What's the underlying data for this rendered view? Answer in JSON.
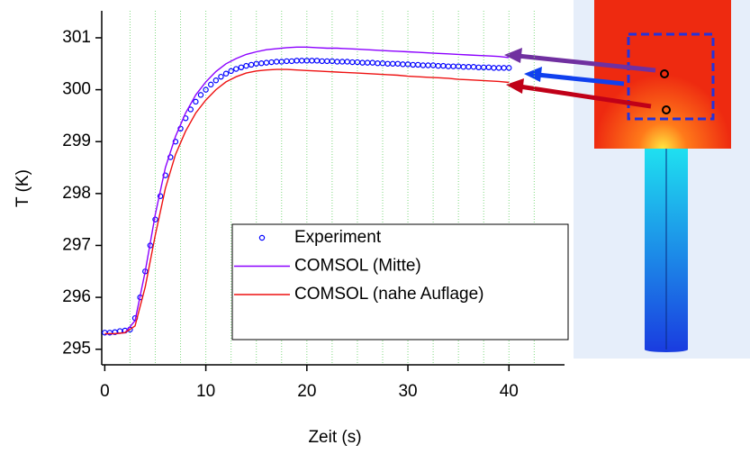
{
  "chart_data": {
    "type": "line",
    "x_label": "Zeit (s)",
    "y_label": "T (K)",
    "xlim": [
      -0.3,
      45.5
    ],
    "ylim": [
      294.7,
      301.52
    ],
    "xticks": [
      0,
      10,
      20,
      30,
      40
    ],
    "yticks": [
      295,
      296,
      297,
      298,
      299,
      300,
      301
    ],
    "vertical_gridlines": [
      2.5,
      5,
      7.5,
      10,
      12.5,
      15,
      17.5,
      20,
      22.5,
      25,
      27.5,
      30,
      32.5,
      35,
      37.5,
      40,
      42.5
    ],
    "grid_color": "#7fd97f",
    "legend": "lower right",
    "series": [
      {
        "name": "Experiment",
        "color": "#0000ff",
        "marker": "circle",
        "x": [
          0,
          0.5,
          1,
          1.5,
          2,
          2.5,
          3,
          3.5,
          4,
          4.5,
          5,
          5.5,
          6,
          6.5,
          7,
          7.5,
          8,
          8.5,
          9,
          9.5,
          10,
          10.5,
          11,
          11.5,
          12,
          12.5,
          13,
          13.5,
          14,
          14.5,
          15,
          15.5,
          16,
          16.5,
          17,
          17.5,
          18,
          18.5,
          19,
          19.5,
          20,
          20.5,
          21,
          21.5,
          22,
          22.5,
          23,
          23.5,
          24,
          24.5,
          25,
          25.5,
          26,
          26.5,
          27,
          27.5,
          28,
          28.5,
          29,
          29.5,
          30,
          30.5,
          31,
          31.5,
          32,
          32.5,
          33,
          33.5,
          34,
          34.5,
          35,
          35.5,
          36,
          36.5,
          37,
          37.5,
          38,
          38.5,
          39,
          39.5,
          40
        ],
        "values": [
          295.32,
          295.32,
          295.33,
          295.35,
          295.36,
          295.38,
          295.6,
          296.0,
          296.5,
          297.0,
          297.5,
          297.95,
          298.35,
          298.7,
          299.0,
          299.25,
          299.45,
          299.62,
          299.77,
          299.9,
          300.0,
          300.1,
          300.18,
          300.25,
          300.31,
          300.36,
          300.4,
          300.43,
          300.46,
          300.48,
          300.5,
          300.51,
          300.52,
          300.53,
          300.54,
          300.54,
          300.55,
          300.55,
          300.56,
          300.56,
          300.56,
          300.56,
          300.56,
          300.55,
          300.55,
          300.55,
          300.54,
          300.54,
          300.54,
          300.53,
          300.53,
          300.52,
          300.52,
          300.52,
          300.51,
          300.51,
          300.5,
          300.5,
          300.5,
          300.49,
          300.49,
          300.48,
          300.48,
          300.47,
          300.47,
          300.47,
          300.46,
          300.46,
          300.45,
          300.45,
          300.45,
          300.44,
          300.44,
          300.44,
          300.43,
          300.43,
          300.43,
          300.42,
          300.42,
          300.42,
          300.42
        ]
      },
      {
        "name": "COMSOL (Mitte)",
        "color": "#8b00ff",
        "marker": "line",
        "x": [
          0,
          1,
          2,
          3,
          4,
          5,
          6,
          7,
          8,
          9,
          10,
          11,
          12,
          13,
          14,
          15,
          16,
          17,
          18,
          19,
          20,
          21,
          22,
          23,
          24,
          25,
          26,
          27,
          28,
          29,
          30,
          31,
          32,
          33,
          34,
          35,
          36,
          37,
          38,
          39,
          40
        ],
        "values": [
          295.3,
          295.3,
          295.32,
          295.55,
          296.5,
          297.6,
          298.5,
          299.1,
          299.55,
          299.9,
          300.15,
          300.35,
          300.5,
          300.6,
          300.68,
          300.73,
          300.77,
          300.79,
          300.81,
          300.82,
          300.82,
          300.81,
          300.8,
          300.8,
          300.79,
          300.78,
          300.77,
          300.76,
          300.75,
          300.74,
          300.73,
          300.72,
          300.71,
          300.7,
          300.69,
          300.68,
          300.67,
          300.66,
          300.65,
          300.64,
          300.62
        ]
      },
      {
        "name": "COMSOL (nahe Auflage)",
        "color": "#ee1111",
        "marker": "line",
        "x": [
          0,
          1,
          2,
          3,
          4,
          5,
          6,
          7,
          8,
          9,
          10,
          11,
          12,
          13,
          14,
          15,
          16,
          17,
          18,
          19,
          20,
          21,
          22,
          23,
          24,
          25,
          26,
          27,
          28,
          29,
          30,
          31,
          32,
          33,
          34,
          35,
          36,
          37,
          38,
          39,
          40
        ],
        "values": [
          295.3,
          295.3,
          295.32,
          295.45,
          296.2,
          297.2,
          298.1,
          298.75,
          299.2,
          299.55,
          299.8,
          300.0,
          300.15,
          300.25,
          300.32,
          300.36,
          300.38,
          300.39,
          300.39,
          300.38,
          300.37,
          300.36,
          300.35,
          300.34,
          300.33,
          300.32,
          300.31,
          300.3,
          300.29,
          300.28,
          300.26,
          300.25,
          300.24,
          300.23,
          300.22,
          300.2,
          300.19,
          300.18,
          300.17,
          300.16,
          300.14
        ]
      }
    ]
  }
}
